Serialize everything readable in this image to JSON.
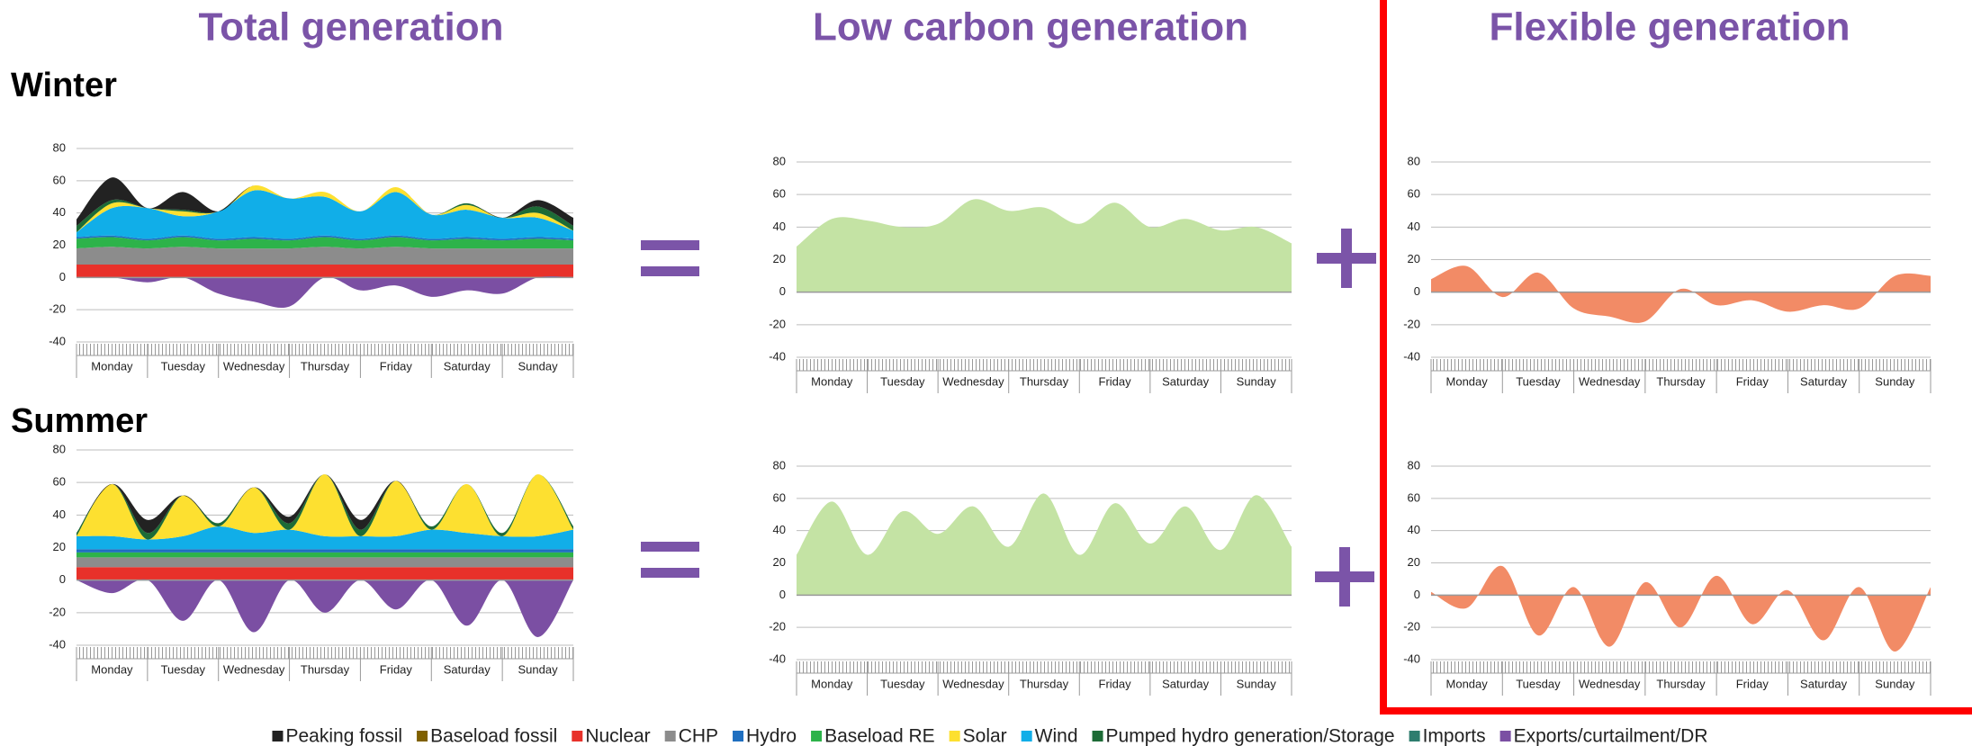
{
  "columns": [
    "Total generation",
    "Low carbon generation",
    "Flexible generation"
  ],
  "rows": [
    "Winter",
    "Summer"
  ],
  "legend": [
    {
      "name": "Peaking fossil",
      "color": "#222222"
    },
    {
      "name": "Baseload fossil",
      "color": "#7f6000"
    },
    {
      "name": "Nuclear",
      "color": "#e8312a"
    },
    {
      "name": "CHP",
      "color": "#8c8c8c"
    },
    {
      "name": "Hydro",
      "color": "#1f6fc0"
    },
    {
      "name": "Baseload RE",
      "color": "#2db34a"
    },
    {
      "name": "Solar",
      "color": "#fde030"
    },
    {
      "name": "Wind",
      "color": "#11aee8"
    },
    {
      "name": "Pumped hydro generation/Storage",
      "color": "#1d6b36"
    },
    {
      "name": "Imports",
      "color": "#2e7d6e"
    },
    {
      "name": "Exports/curtailment/DR",
      "color": "#7b4fa3"
    }
  ],
  "chart_data": [
    {
      "type": "stacked_area",
      "categories": [
        "Monday",
        "Tuesday",
        "Wednesday",
        "Thursday",
        "Friday",
        "Saturday",
        "Sunday"
      ],
      "x": [
        0,
        12,
        24,
        36,
        48,
        60,
        72,
        84,
        96,
        108,
        120,
        132,
        144,
        156,
        168
      ],
      "xlim": [
        0,
        168
      ],
      "ylim": [
        -40,
        80
      ],
      "yticks": [
        -40,
        -20,
        0,
        20,
        40,
        60,
        80
      ],
      "series": [
        {
          "name": "Nuclear",
          "color": "#e8312a",
          "values": [
            8,
            8,
            8,
            8,
            8,
            8,
            8,
            8,
            8,
            8,
            8,
            8,
            8,
            8,
            8
          ]
        },
        {
          "name": "CHP",
          "color": "#8c8c8c",
          "values": [
            10,
            11,
            10,
            11,
            10,
            10,
            10,
            11,
            10,
            11,
            10,
            10,
            10,
            10,
            10
          ]
        },
        {
          "name": "Baseload RE",
          "color": "#2db34a",
          "values": [
            6,
            6,
            5,
            6,
            5,
            6,
            5,
            6,
            5,
            6,
            5,
            6,
            5,
            6,
            5
          ]
        },
        {
          "name": "Hydro",
          "color": "#1f6fc0",
          "values": [
            1,
            1,
            1,
            1,
            1,
            1,
            1,
            1,
            1,
            1,
            1,
            1,
            1,
            1,
            1
          ]
        },
        {
          "name": "Wind",
          "color": "#11aee8",
          "values": [
            3,
            17,
            19,
            12,
            17,
            29,
            25,
            24,
            17,
            27,
            15,
            17,
            13,
            12,
            5
          ]
        },
        {
          "name": "Solar",
          "color": "#fde030",
          "values": [
            0,
            3,
            0,
            3,
            0,
            3,
            0,
            3,
            0,
            3,
            0,
            3,
            0,
            3,
            0
          ]
        },
        {
          "name": "Pumped hydro generation/Storage",
          "color": "#1d6b36",
          "values": [
            4,
            2,
            0,
            1,
            0,
            0,
            0,
            0,
            0,
            0,
            0,
            1,
            0,
            4,
            3
          ]
        },
        {
          "name": "Peaking fossil",
          "color": "#222222",
          "values": [
            4,
            14,
            0,
            11,
            0,
            0,
            0,
            0,
            0,
            0,
            0,
            0,
            0,
            4,
            5
          ]
        },
        {
          "name": "Exports/curtailment/DR",
          "color": "#7b4fa3",
          "values": [
            0,
            0,
            -3,
            0,
            -10,
            -15,
            -18,
            0,
            -8,
            -5,
            -12,
            -8,
            -10,
            0,
            0
          ]
        }
      ]
    },
    {
      "type": "area",
      "categories": [
        "Monday",
        "Tuesday",
        "Wednesday",
        "Thursday",
        "Friday",
        "Saturday",
        "Sunday"
      ],
      "x": [
        0,
        12,
        24,
        36,
        48,
        60,
        72,
        84,
        96,
        108,
        120,
        132,
        144,
        156,
        168
      ],
      "xlim": [
        0,
        168
      ],
      "ylim": [
        -40,
        80
      ],
      "yticks": [
        -40,
        -20,
        0,
        20,
        40,
        60,
        80
      ],
      "series": [
        {
          "color": "#c4e3a4",
          "values": [
            28,
            45,
            44,
            40,
            42,
            57,
            50,
            52,
            42,
            55,
            40,
            45,
            38,
            40,
            30
          ]
        }
      ]
    },
    {
      "type": "area",
      "categories": [
        "Monday",
        "Tuesday",
        "Wednesday",
        "Thursday",
        "Friday",
        "Saturday",
        "Sunday"
      ],
      "x": [
        0,
        12,
        24,
        36,
        48,
        60,
        72,
        84,
        96,
        108,
        120,
        132,
        144,
        156,
        168
      ],
      "xlim": [
        0,
        168
      ],
      "ylim": [
        -40,
        80
      ],
      "yticks": [
        -40,
        -20,
        0,
        20,
        40,
        60,
        80
      ],
      "series": [
        {
          "color": "#f28b66",
          "values": [
            8,
            16,
            -3,
            12,
            -10,
            -15,
            -18,
            2,
            -8,
            -5,
            -12,
            -8,
            -10,
            10,
            10
          ]
        }
      ]
    },
    {
      "type": "stacked_area",
      "categories": [
        "Monday",
        "Tuesday",
        "Wednesday",
        "Thursday",
        "Friday",
        "Saturday",
        "Sunday"
      ],
      "x": [
        0,
        12,
        24,
        36,
        48,
        60,
        72,
        84,
        96,
        108,
        120,
        132,
        144,
        156,
        168
      ],
      "xlim": [
        0,
        168
      ],
      "ylim": [
        -40,
        80
      ],
      "yticks": [
        -40,
        -20,
        0,
        20,
        40,
        60,
        80
      ],
      "series": [
        {
          "name": "Nuclear",
          "color": "#e8312a",
          "values": [
            8,
            8,
            8,
            8,
            8,
            8,
            8,
            8,
            8,
            8,
            8,
            8,
            8,
            8,
            8
          ]
        },
        {
          "name": "CHP",
          "color": "#8c8c8c",
          "values": [
            6,
            6,
            6,
            6,
            6,
            6,
            6,
            6,
            6,
            6,
            6,
            6,
            6,
            6,
            6
          ]
        },
        {
          "name": "Baseload RE",
          "color": "#2db34a",
          "values": [
            3,
            3,
            3,
            3,
            3,
            3,
            3,
            3,
            3,
            3,
            3,
            3,
            3,
            3,
            3
          ]
        },
        {
          "name": "Hydro",
          "color": "#1f6fc0",
          "values": [
            2,
            2,
            2,
            2,
            2,
            2,
            2,
            2,
            2,
            2,
            2,
            2,
            2,
            2,
            2
          ]
        },
        {
          "name": "Wind",
          "color": "#11aee8",
          "values": [
            8,
            8,
            6,
            8,
            14,
            10,
            12,
            8,
            8,
            8,
            12,
            10,
            8,
            8,
            12
          ]
        },
        {
          "name": "Solar",
          "color": "#fde030",
          "values": [
            0,
            32,
            0,
            25,
            0,
            28,
            0,
            38,
            0,
            34,
            0,
            30,
            0,
            38,
            0
          ]
        },
        {
          "name": "Pumped hydro generation/Storage",
          "color": "#1d6b36",
          "values": [
            2,
            0,
            4,
            0,
            2,
            0,
            4,
            0,
            4,
            0,
            2,
            0,
            2,
            0,
            2
          ]
        },
        {
          "name": "Peaking fossil",
          "color": "#222222",
          "values": [
            0,
            0,
            8,
            0,
            0,
            0,
            4,
            0,
            6,
            0,
            0,
            0,
            0,
            0,
            0
          ]
        },
        {
          "name": "Exports/curtailment/DR",
          "color": "#7b4fa3",
          "values": [
            0,
            -8,
            0,
            -25,
            0,
            -32,
            0,
            -20,
            0,
            -18,
            0,
            -28,
            0,
            -35,
            0
          ]
        }
      ]
    },
    {
      "type": "area",
      "categories": [
        "Monday",
        "Tuesday",
        "Wednesday",
        "Thursday",
        "Friday",
        "Saturday",
        "Sunday"
      ],
      "x": [
        0,
        12,
        24,
        36,
        48,
        60,
        72,
        84,
        96,
        108,
        120,
        132,
        144,
        156,
        168
      ],
      "xlim": [
        0,
        168
      ],
      "ylim": [
        -40,
        80
      ],
      "yticks": [
        -40,
        -20,
        0,
        20,
        40,
        60,
        80
      ],
      "series": [
        {
          "color": "#c4e3a4",
          "values": [
            25,
            58,
            25,
            52,
            38,
            55,
            30,
            63,
            25,
            57,
            32,
            55,
            28,
            62,
            30
          ]
        }
      ]
    },
    {
      "type": "area",
      "categories": [
        "Monday",
        "Tuesday",
        "Wednesday",
        "Thursday",
        "Friday",
        "Saturday",
        "Sunday"
      ],
      "x": [
        0,
        12,
        24,
        36,
        48,
        60,
        72,
        84,
        96,
        108,
        120,
        132,
        144,
        156,
        168
      ],
      "xlim": [
        0,
        168
      ],
      "ylim": [
        -40,
        80
      ],
      "yticks": [
        -40,
        -20,
        0,
        20,
        40,
        60,
        80
      ],
      "series": [
        {
          "color": "#f28b66",
          "values": [
            2,
            -8,
            18,
            -25,
            5,
            -32,
            8,
            -20,
            12,
            -18,
            3,
            -28,
            5,
            -35,
            5
          ]
        }
      ]
    }
  ]
}
